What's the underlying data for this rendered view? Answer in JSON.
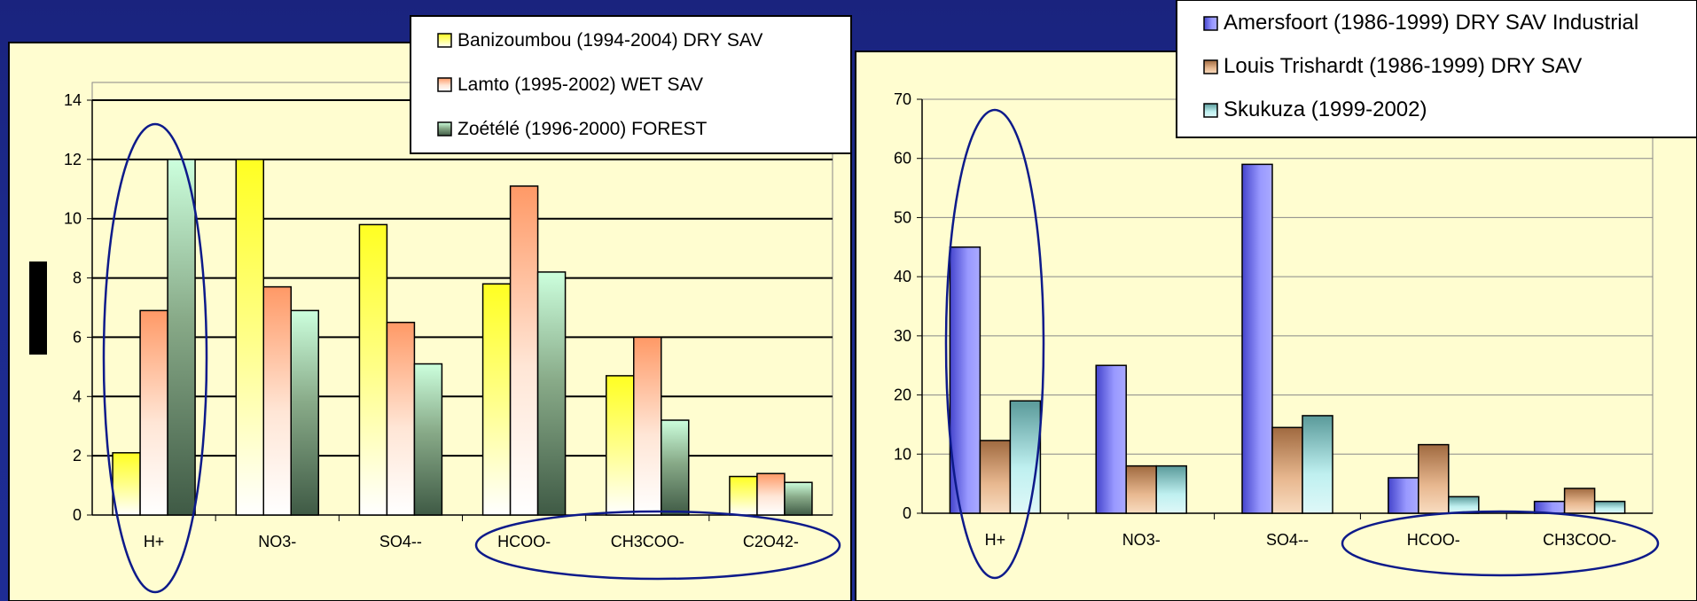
{
  "colors": {
    "background": "#1c2a8c",
    "panel": "#fffdd0",
    "ellipse": "#0d1a8a"
  },
  "chart_data": [
    {
      "type": "bar",
      "categories": [
        "H+",
        "NO3-",
        "SO4--",
        "HCOO-",
        "CH3COO-",
        "C2O42-"
      ],
      "ylim": [
        0,
        14
      ],
      "yticks": [
        "0",
        "2",
        "4",
        "6",
        "8",
        "10",
        "12",
        "14"
      ],
      "grid": true,
      "legend_position": "top-right",
      "series": [
        {
          "name": "Banizoumbou (1994-2004) DRY SAV",
          "values": [
            2.1,
            12.0,
            9.8,
            7.8,
            4.7,
            1.3
          ],
          "color": "#ffff33"
        },
        {
          "name": "Lamto (1995-2002) WET SAV",
          "values": [
            6.9,
            7.7,
            6.5,
            11.1,
            6.0,
            1.4
          ],
          "color": "#ff9966"
        },
        {
          "name": "Zoétélé (1996-2000) FOREST",
          "values": [
            12.0,
            6.9,
            5.1,
            8.2,
            3.2,
            1.1
          ],
          "color": "#66bb77"
        }
      ]
    },
    {
      "type": "bar",
      "categories": [
        "H+",
        "NO3-",
        "SO4--",
        "HCOO-",
        "CH3COO-"
      ],
      "ylim": [
        0,
        70
      ],
      "yticks": [
        "0",
        "10",
        "20",
        "30",
        "40",
        "50",
        "60",
        "70"
      ],
      "grid": true,
      "legend_position": "top-right",
      "series": [
        {
          "name": "Amersfoort (1986-1999) DRY SAV Industrial",
          "values": [
            45,
            25,
            59,
            6,
            2
          ],
          "color": "#7777ee"
        },
        {
          "name": "Louis Trishardt (1986-1999) DRY SAV",
          "values": [
            12.3,
            8,
            14.5,
            11.6,
            4.2
          ],
          "color": "#cc8855"
        },
        {
          "name": "Skukuza (1999-2002)",
          "values": [
            19,
            8,
            16.5,
            2.8,
            2
          ],
          "color": "#88dddd"
        }
      ]
    }
  ]
}
